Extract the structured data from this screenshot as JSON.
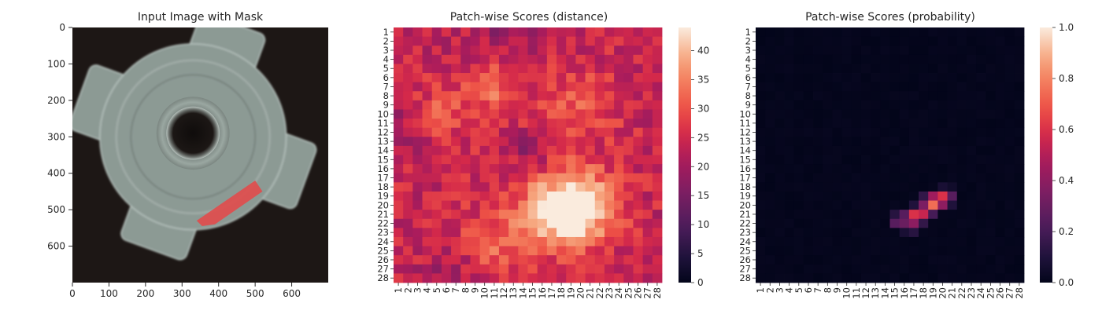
{
  "chart_data": [
    {
      "type": "image",
      "title": "Input Image with Mask",
      "xlim": [
        0,
        700
      ],
      "ylim": [
        700,
        0
      ],
      "xticks": [
        0,
        100,
        200,
        300,
        400,
        500,
        600
      ],
      "yticks": [
        0,
        100,
        200,
        300,
        400,
        500,
        600
      ],
      "image": {
        "background_color": "#1d1715",
        "object_color": "#8c9a94",
        "object_center": [
          330,
          300
        ],
        "hole_center": [
          330,
          290
        ],
        "hole_radius": 65,
        "mask_color": "#e04d4d",
        "mask_polygon": [
          [
            340,
            530
          ],
          [
            500,
            420
          ],
          [
            520,
            450
          ],
          [
            390,
            540
          ],
          [
            355,
            545
          ]
        ]
      }
    },
    {
      "type": "heatmap",
      "title": "Patch-wise Scores (distance)",
      "rows": 28,
      "cols": 28,
      "row_labels": [
        "1",
        "2",
        "3",
        "4",
        "5",
        "6",
        "7",
        "8",
        "9",
        "10",
        "11",
        "12",
        "13",
        "14",
        "15",
        "16",
        "17",
        "18",
        "19",
        "20",
        "21",
        "22",
        "23",
        "24",
        "25",
        "26",
        "27",
        "28"
      ],
      "col_labels": [
        "1",
        "2",
        "3",
        "4",
        "5",
        "6",
        "7",
        "8",
        "9",
        "10",
        "11",
        "12",
        "13",
        "14",
        "15",
        "16",
        "17",
        "18",
        "19",
        "20",
        "21",
        "22",
        "23",
        "24",
        "25",
        "26",
        "27",
        "28"
      ],
      "colormap": "rocket",
      "vmin": 0,
      "vmax": 44,
      "colorbar_ticks": [
        0,
        5,
        10,
        15,
        20,
        25,
        30,
        35,
        40
      ],
      "base_value": 24,
      "hotspots": [
        {
          "row": 20,
          "col": 20,
          "value": 44,
          "spread": 2.6
        },
        {
          "row": 21,
          "col": 17,
          "value": 38,
          "spread": 3.0
        },
        {
          "row": 7,
          "col": 11,
          "value": 33,
          "spread": 2.5
        },
        {
          "row": 9,
          "col": 20,
          "value": 31,
          "spread": 2.8
        },
        {
          "row": 24,
          "col": 11,
          "value": 31,
          "spread": 2.5
        },
        {
          "row": 10,
          "col": 5,
          "value": 30,
          "spread": 2.0
        }
      ],
      "coldspots": [
        {
          "row": 2,
          "col": 12,
          "value": 19,
          "spread": 3.0
        },
        {
          "row": 14,
          "col": 15,
          "value": 18,
          "spread": 1.6
        },
        {
          "row": 28,
          "col": 6,
          "value": 19,
          "spread": 2.0
        },
        {
          "row": 12,
          "col": 1,
          "value": 19,
          "spread": 1.8
        }
      ]
    },
    {
      "type": "heatmap",
      "title": "Patch-wise Scores (probability)",
      "rows": 28,
      "cols": 28,
      "row_labels": [
        "1",
        "2",
        "3",
        "4",
        "5",
        "6",
        "7",
        "8",
        "9",
        "10",
        "11",
        "12",
        "13",
        "14",
        "15",
        "16",
        "17",
        "18",
        "19",
        "20",
        "21",
        "22",
        "23",
        "24",
        "25",
        "26",
        "27",
        "28"
      ],
      "col_labels": [
        "1",
        "2",
        "3",
        "4",
        "5",
        "6",
        "7",
        "8",
        "9",
        "10",
        "11",
        "12",
        "13",
        "14",
        "15",
        "16",
        "17",
        "18",
        "19",
        "20",
        "21",
        "22",
        "23",
        "24",
        "25",
        "26",
        "27",
        "28"
      ],
      "colormap": "rocket",
      "vmin": 0,
      "vmax": 1.0,
      "colorbar_ticks": [
        "0.0",
        "0.2",
        "0.4",
        "0.6",
        "0.8",
        "1.0"
      ],
      "base_value": 0.0,
      "cells": [
        {
          "row": 18,
          "col": 20,
          "value": 0.08
        },
        {
          "row": 18,
          "col": 21,
          "value": 0.05
        },
        {
          "row": 19,
          "col": 18,
          "value": 0.15
        },
        {
          "row": 19,
          "col": 19,
          "value": 0.45
        },
        {
          "row": 19,
          "col": 20,
          "value": 0.6
        },
        {
          "row": 19,
          "col": 21,
          "value": 0.25
        },
        {
          "row": 20,
          "col": 17,
          "value": 0.1
        },
        {
          "row": 20,
          "col": 18,
          "value": 0.35
        },
        {
          "row": 20,
          "col": 19,
          "value": 0.75
        },
        {
          "row": 20,
          "col": 20,
          "value": 0.4
        },
        {
          "row": 20,
          "col": 21,
          "value": 0.1
        },
        {
          "row": 21,
          "col": 15,
          "value": 0.12
        },
        {
          "row": 21,
          "col": 16,
          "value": 0.25
        },
        {
          "row": 21,
          "col": 17,
          "value": 0.6
        },
        {
          "row": 21,
          "col": 18,
          "value": 0.55
        },
        {
          "row": 21,
          "col": 19,
          "value": 0.2
        },
        {
          "row": 22,
          "col": 15,
          "value": 0.25
        },
        {
          "row": 22,
          "col": 16,
          "value": 0.3
        },
        {
          "row": 22,
          "col": 17,
          "value": 0.4
        },
        {
          "row": 22,
          "col": 18,
          "value": 0.15
        },
        {
          "row": 23,
          "col": 16,
          "value": 0.08
        },
        {
          "row": 23,
          "col": 17,
          "value": 0.12
        }
      ]
    }
  ]
}
